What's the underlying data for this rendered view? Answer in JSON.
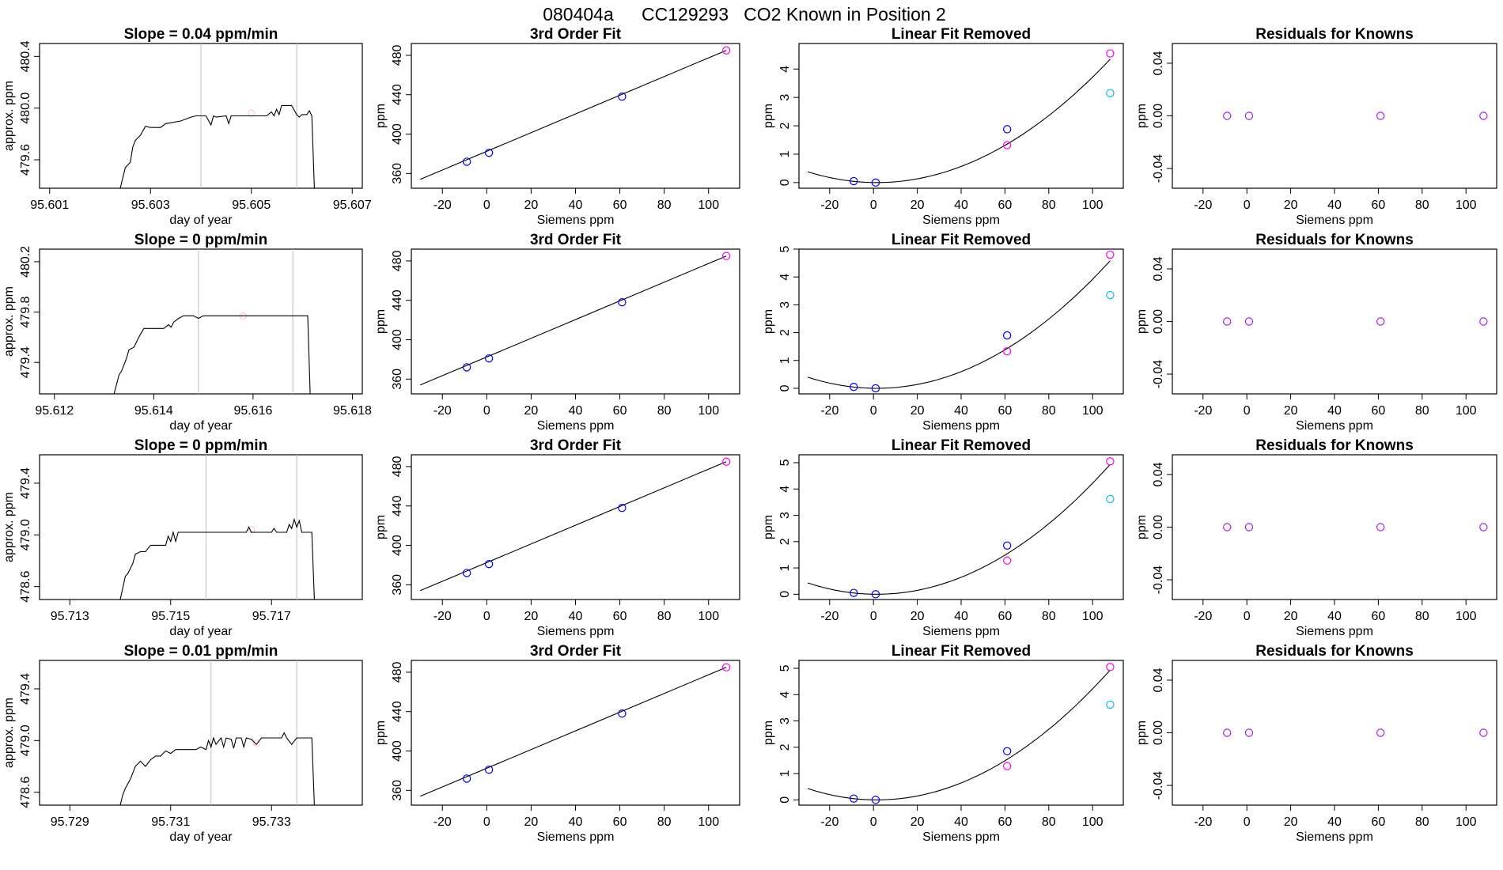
{
  "page": {
    "title_id": "080404a",
    "title_tank": "CC129293",
    "title_text": "CO2 Known in Position  2"
  },
  "colors": {
    "line": "#000000",
    "vline": "#bebebe",
    "blue": "#0000ff",
    "magenta": "#ff00ff",
    "cyan": "#00bfff",
    "purple": "#a020f0",
    "ref": "#ffc0cb"
  },
  "chart_data": [
    {
      "type": "line",
      "panel": "trace",
      "title": "Slope =  0.04  ppm/min",
      "xlabel": "day of year",
      "ylabel": "approx. ppm",
      "xlim": [
        95.6008,
        95.6072
      ],
      "ylim": [
        479.38,
        480.5
      ],
      "xticks": [
        95.601,
        95.603,
        95.605,
        95.607
      ],
      "xtick_labels": [
        "95.601",
        "95.603",
        "95.605",
        "95.607"
      ],
      "yticks": [
        479.6,
        480.0,
        480.4
      ],
      "ytick_labels": [
        "479.6",
        "480.0",
        "480.4"
      ],
      "vlines": [
        95.604,
        95.6059
      ],
      "ref_point": [
        95.605,
        479.96
      ],
      "x": [
        95.6024,
        95.6025,
        95.6026,
        95.60265,
        95.6027,
        95.6028,
        95.6029,
        95.603,
        95.6031,
        95.6032,
        95.6033,
        95.6036,
        95.6038,
        95.6039,
        95.604,
        95.6041,
        95.6042,
        95.60425,
        95.6043,
        95.6045,
        95.60455,
        95.6046,
        95.6048,
        95.605,
        95.6051,
        95.6053,
        95.6054,
        95.60545,
        95.6055,
        95.60555,
        95.6056,
        95.6057,
        95.6058,
        95.6059,
        95.60595,
        95.606,
        95.6061,
        95.60615,
        95.6062,
        95.60625
      ],
      "y": [
        479.38,
        479.54,
        479.58,
        479.7,
        479.75,
        479.79,
        479.86,
        479.85,
        479.85,
        479.85,
        479.88,
        479.9,
        479.93,
        479.94,
        479.94,
        479.94,
        479.87,
        479.94,
        479.93,
        479.94,
        479.88,
        479.94,
        479.94,
        479.94,
        479.94,
        479.94,
        479.97,
        479.94,
        479.99,
        479.95,
        480.02,
        480.02,
        480.02,
        479.95,
        479.93,
        479.95,
        479.95,
        479.98,
        479.94,
        479.38
      ]
    },
    {
      "type": "scatter",
      "panel": "fit",
      "title": "3rd Order Fit",
      "xlabel": "Siemens ppm",
      "ylabel": "ppm",
      "xlim": [
        -34,
        114
      ],
      "ylim": [
        345,
        492
      ],
      "xticks": [
        -20,
        0,
        20,
        40,
        60,
        80,
        100
      ],
      "yticks": [
        360,
        400,
        440,
        480
      ],
      "fit_line": [
        [
          -30,
          354
        ],
        [
          108,
          485
        ]
      ],
      "points": [
        [
          -9,
          372
        ],
        [
          1,
          381
        ],
        [
          61,
          438
        ],
        [
          108,
          485
        ]
      ],
      "point_colors": [
        "blue",
        "blue",
        "blue",
        "magenta"
      ]
    },
    {
      "type": "scatter",
      "panel": "linear_removed",
      "title": "Linear Fit Removed",
      "xlabel": "Siemens ppm",
      "ylabel": "ppm",
      "xlim": [
        -34,
        114
      ],
      "ylim": [
        -0.2,
        4.9
      ],
      "xticks": [
        -20,
        0,
        20,
        40,
        60,
        80,
        100
      ],
      "yticks": [
        0,
        1,
        2,
        3,
        4
      ],
      "curve": {
        "xmin": -30,
        "xmax": 108,
        "x0": 1.5,
        "a": 0.000383
      },
      "points": [
        [
          -9,
          0.05
        ],
        [
          1,
          0.0
        ],
        [
          61,
          1.88
        ],
        [
          108,
          4.55
        ],
        [
          61,
          1.32
        ],
        [
          108,
          3.15
        ]
      ],
      "point_colors": [
        "blue",
        "blue",
        "blue",
        "magenta",
        "magenta",
        "cyan"
      ]
    },
    {
      "type": "scatter",
      "panel": "residuals",
      "title": "Residuals for Knowns",
      "xlabel": "Siemens ppm",
      "ylabel": "ppm",
      "xlim": [
        -34,
        114
      ],
      "ylim": [
        -0.055,
        0.055
      ],
      "xticks": [
        -20,
        0,
        20,
        40,
        60,
        80,
        100
      ],
      "yticks": [
        -0.04,
        0.0,
        0.04
      ],
      "ytick_labels": [
        "-0.04",
        "0.00",
        "0.04"
      ],
      "points": [
        [
          -9,
          0
        ],
        [
          1,
          0
        ],
        [
          61,
          0
        ],
        [
          108,
          0
        ]
      ],
      "point_colors": [
        "purple",
        "purple",
        "purple",
        "purple"
      ]
    },
    {
      "type": "line",
      "panel": "trace",
      "title": "Slope =  0  ppm/min",
      "xlabel": "day of year",
      "ylabel": "approx. ppm",
      "xlim": [
        95.6117,
        95.6182
      ],
      "ylim": [
        479.15,
        480.3
      ],
      "xticks": [
        95.612,
        95.614,
        95.616,
        95.618
      ],
      "xtick_labels": [
        "95.612",
        "95.614",
        "95.616",
        "95.618"
      ],
      "yticks": [
        479.4,
        479.8,
        480.2
      ],
      "ytick_labels": [
        "479.4",
        "479.8",
        "480.2"
      ],
      "vlines": [
        95.6149,
        95.6168
      ],
      "ref_point": [
        95.6158,
        479.77
      ],
      "x": [
        95.6132,
        95.6133,
        95.61335,
        95.6134,
        95.61345,
        95.6135,
        95.6136,
        95.6137,
        95.6138,
        95.6139,
        95.614,
        95.6142,
        95.6143,
        95.61435,
        95.6144,
        95.6145,
        95.6146,
        95.6147,
        95.6148,
        95.6149,
        95.615,
        95.6155,
        95.616,
        95.6165,
        95.617,
        95.6171,
        95.61715
      ],
      "y": [
        479.15,
        479.3,
        479.33,
        479.38,
        479.43,
        479.5,
        479.52,
        479.6,
        479.67,
        479.67,
        479.67,
        479.67,
        479.7,
        479.68,
        479.72,
        479.75,
        479.77,
        479.77,
        479.77,
        479.75,
        479.77,
        479.77,
        479.77,
        479.77,
        479.77,
        479.77,
        479.15
      ]
    },
    {
      "type": "scatter",
      "panel": "fit",
      "title": "3rd Order Fit",
      "xlabel": "Siemens ppm",
      "ylabel": "ppm",
      "xlim": [
        -34,
        114
      ],
      "ylim": [
        345,
        492
      ],
      "xticks": [
        -20,
        0,
        20,
        40,
        60,
        80,
        100
      ],
      "yticks": [
        360,
        400,
        440,
        480
      ],
      "fit_line": [
        [
          -30,
          354
        ],
        [
          108,
          485
        ]
      ],
      "points": [
        [
          -9,
          372
        ],
        [
          1,
          381
        ],
        [
          61,
          438
        ],
        [
          108,
          485
        ]
      ],
      "point_colors": [
        "blue",
        "blue",
        "blue",
        "magenta"
      ]
    },
    {
      "type": "scatter",
      "panel": "linear_removed",
      "title": "Linear Fit Removed",
      "xlabel": "Siemens ppm",
      "ylabel": "ppm",
      "xlim": [
        -34,
        114
      ],
      "ylim": [
        -0.2,
        5.0
      ],
      "xticks": [
        -20,
        0,
        20,
        40,
        60,
        80,
        100
      ],
      "yticks": [
        0,
        1,
        2,
        3,
        4,
        5
      ],
      "curve": {
        "xmin": -30,
        "xmax": 108,
        "x0": 1.5,
        "a": 0.000404
      },
      "points": [
        [
          -9,
          0.05
        ],
        [
          1,
          0.0
        ],
        [
          61,
          1.9
        ],
        [
          108,
          4.8
        ],
        [
          61,
          1.33
        ],
        [
          108,
          3.35
        ]
      ],
      "point_colors": [
        "blue",
        "blue",
        "blue",
        "magenta",
        "magenta",
        "cyan"
      ]
    },
    {
      "type": "scatter",
      "panel": "residuals",
      "title": "Residuals for Knowns",
      "xlabel": "Siemens ppm",
      "ylabel": "ppm",
      "xlim": [
        -34,
        114
      ],
      "ylim": [
        -0.055,
        0.055
      ],
      "xticks": [
        -20,
        0,
        20,
        40,
        60,
        80,
        100
      ],
      "yticks": [
        -0.04,
        0.0,
        0.04
      ],
      "ytick_labels": [
        "-0.04",
        "0.00",
        "0.04"
      ],
      "points": [
        [
          -9,
          0
        ],
        [
          1,
          0
        ],
        [
          61,
          0
        ],
        [
          108,
          0
        ]
      ],
      "point_colors": [
        "purple",
        "purple",
        "purple",
        "purple"
      ]
    },
    {
      "type": "line",
      "panel": "trace",
      "title": "Slope =  0  ppm/min",
      "xlabel": "day of year",
      "ylabel": "approx. ppm",
      "xlim": [
        95.7124,
        95.7188
      ],
      "ylim": [
        478.5,
        479.62
      ],
      "xticks": [
        95.713,
        95.715,
        95.717
      ],
      "xtick_labels": [
        "95.713",
        "95.715",
        "95.717"
      ],
      "yticks": [
        478.6,
        479.0,
        479.4
      ],
      "ytick_labels": [
        "478.6",
        "479.0",
        "479.4"
      ],
      "vlines": [
        95.7157,
        95.7175
      ],
      "ref_point": [
        95.7166,
        479.04
      ],
      "x": [
        95.714,
        95.7141,
        95.71415,
        95.7142,
        95.71425,
        95.7143,
        95.7144,
        95.7145,
        95.7146,
        95.7147,
        95.7148,
        95.7149,
        95.71495,
        95.715,
        95.71505,
        95.7151,
        95.71515,
        95.7152,
        95.7153,
        95.716,
        95.7165,
        95.71655,
        95.7166,
        95.717,
        95.71705,
        95.7171,
        95.7173,
        95.71735,
        95.7174,
        95.71745,
        95.7175,
        95.71755,
        95.7176,
        95.7178,
        95.71785
      ],
      "y": [
        478.5,
        478.68,
        478.7,
        478.74,
        478.78,
        478.85,
        478.87,
        478.87,
        478.92,
        478.92,
        478.92,
        478.92,
        478.99,
        478.95,
        479.02,
        478.95,
        479.02,
        479.02,
        479.02,
        479.02,
        479.02,
        479.06,
        479.02,
        479.02,
        479.05,
        479.02,
        479.02,
        479.08,
        479.05,
        479.12,
        479.06,
        479.11,
        479.02,
        479.02,
        478.5
      ]
    },
    {
      "type": "scatter",
      "panel": "fit",
      "title": "3rd Order Fit",
      "xlabel": "Siemens ppm",
      "ylabel": "ppm",
      "xlim": [
        -34,
        114
      ],
      "ylim": [
        345,
        492
      ],
      "xticks": [
        -20,
        0,
        20,
        40,
        60,
        80,
        100
      ],
      "yticks": [
        360,
        400,
        440,
        480
      ],
      "fit_line": [
        [
          -30,
          354
        ],
        [
          108,
          485
        ]
      ],
      "points": [
        [
          -9,
          372
        ],
        [
          1,
          381
        ],
        [
          61,
          438
        ],
        [
          108,
          485
        ]
      ],
      "point_colors": [
        "blue",
        "blue",
        "blue",
        "magenta"
      ]
    },
    {
      "type": "scatter",
      "panel": "linear_removed",
      "title": "Linear Fit Removed",
      "xlabel": "Siemens ppm",
      "ylabel": "ppm",
      "xlim": [
        -34,
        114
      ],
      "ylim": [
        -0.2,
        5.3
      ],
      "xticks": [
        -20,
        0,
        20,
        40,
        60,
        80,
        100
      ],
      "yticks": [
        0,
        1,
        2,
        3,
        4,
        5
      ],
      "curve": {
        "xmin": -30,
        "xmax": 108,
        "x0": 1.5,
        "a": 0.000435
      },
      "points": [
        [
          -9,
          0.05
        ],
        [
          1,
          0.0
        ],
        [
          61,
          1.85
        ],
        [
          108,
          5.05
        ],
        [
          61,
          1.28
        ],
        [
          108,
          3.62
        ]
      ],
      "point_colors": [
        "blue",
        "blue",
        "blue",
        "magenta",
        "magenta",
        "cyan"
      ]
    },
    {
      "type": "scatter",
      "panel": "residuals",
      "title": "Residuals for Knowns",
      "xlabel": "Siemens ppm",
      "ylabel": "ppm",
      "xlim": [
        -34,
        114
      ],
      "ylim": [
        -0.055,
        0.055
      ],
      "xticks": [
        -20,
        0,
        20,
        40,
        60,
        80,
        100
      ],
      "yticks": [
        -0.04,
        0.0,
        0.04
      ],
      "ytick_labels": [
        "-0.04",
        "0.00",
        "0.04"
      ],
      "points": [
        [
          -9,
          0
        ],
        [
          1,
          0
        ],
        [
          61,
          0
        ],
        [
          108,
          0
        ]
      ],
      "point_colors": [
        "purple",
        "purple",
        "purple",
        "purple"
      ]
    },
    {
      "type": "line",
      "panel": "trace",
      "title": "Slope =  0.01  ppm/min",
      "xlabel": "day of year",
      "ylabel": "approx. ppm",
      "xlim": [
        95.7284,
        95.7348
      ],
      "ylim": [
        478.5,
        479.62
      ],
      "xticks": [
        95.729,
        95.731,
        95.733
      ],
      "xtick_labels": [
        "95.729",
        "95.731",
        "95.733"
      ],
      "yticks": [
        478.6,
        479.0,
        479.4
      ],
      "ytick_labels": [
        "478.6",
        "479.0",
        "479.4"
      ],
      "vlines": [
        95.7318,
        95.7335
      ],
      "ref_point": [
        95.7327,
        478.98
      ],
      "x": [
        95.73,
        95.73005,
        95.7301,
        95.7302,
        95.73025,
        95.7303,
        95.7304,
        95.7305,
        95.7306,
        95.7307,
        95.7308,
        95.7309,
        95.731,
        95.7311,
        95.7312,
        95.7313,
        95.7314,
        95.7315,
        95.7316,
        95.7317,
        95.73175,
        95.7318,
        95.73185,
        95.7319,
        95.732,
        95.73205,
        95.7321,
        95.7322,
        95.73225,
        95.7323,
        95.7324,
        95.73245,
        95.7325,
        95.7326,
        95.7327,
        95.7328,
        95.7329,
        95.733,
        95.7332,
        95.73325,
        95.7333,
        95.7334,
        95.7335,
        95.7338,
        95.73385
      ],
      "y": [
        478.5,
        478.58,
        478.63,
        478.7,
        478.75,
        478.8,
        478.84,
        478.8,
        478.85,
        478.88,
        478.88,
        478.92,
        478.9,
        478.93,
        478.93,
        478.93,
        478.93,
        478.93,
        478.95,
        478.93,
        479.0,
        478.95,
        479.02,
        478.97,
        479.02,
        478.95,
        479.02,
        479.01,
        478.94,
        479.02,
        479.02,
        478.95,
        479.02,
        479.01,
        478.97,
        479.02,
        479.02,
        479.02,
        479.02,
        479.06,
        479.02,
        478.97,
        479.02,
        479.02,
        478.5
      ]
    },
    {
      "type": "scatter",
      "panel": "fit",
      "title": "3rd Order Fit",
      "xlabel": "Siemens ppm",
      "ylabel": "ppm",
      "xlim": [
        -34,
        114
      ],
      "ylim": [
        345,
        492
      ],
      "xticks": [
        -20,
        0,
        20,
        40,
        60,
        80,
        100
      ],
      "yticks": [
        360,
        400,
        440,
        480
      ],
      "fit_line": [
        [
          -30,
          354
        ],
        [
          108,
          485
        ]
      ],
      "points": [
        [
          -9,
          372
        ],
        [
          1,
          381
        ],
        [
          61,
          438
        ],
        [
          108,
          485
        ]
      ],
      "point_colors": [
        "blue",
        "blue",
        "blue",
        "magenta"
      ]
    },
    {
      "type": "scatter",
      "panel": "linear_removed",
      "title": "Linear Fit Removed",
      "xlabel": "Siemens ppm",
      "ylabel": "ppm",
      "xlim": [
        -34,
        114
      ],
      "ylim": [
        -0.2,
        5.3
      ],
      "xticks": [
        -20,
        0,
        20,
        40,
        60,
        80,
        100
      ],
      "yticks": [
        0,
        1,
        2,
        3,
        4,
        5
      ],
      "curve": {
        "xmin": -30,
        "xmax": 108,
        "x0": 1.5,
        "a": 0.000435
      },
      "points": [
        [
          -9,
          0.05
        ],
        [
          1,
          0.0
        ],
        [
          61,
          1.85
        ],
        [
          108,
          5.05
        ],
        [
          61,
          1.28
        ],
        [
          108,
          3.62
        ]
      ],
      "point_colors": [
        "blue",
        "blue",
        "blue",
        "magenta",
        "magenta",
        "cyan"
      ]
    },
    {
      "type": "scatter",
      "panel": "residuals",
      "title": "Residuals for Knowns",
      "xlabel": "Siemens ppm",
      "ylabel": "ppm",
      "xlim": [
        -34,
        114
      ],
      "ylim": [
        -0.055,
        0.055
      ],
      "xticks": [
        -20,
        0,
        20,
        40,
        60,
        80,
        100
      ],
      "yticks": [
        -0.04,
        0.0,
        0.04
      ],
      "ytick_labels": [
        "-0.04",
        "0.00",
        "0.04"
      ],
      "points": [
        [
          -9,
          0
        ],
        [
          1,
          0
        ],
        [
          61,
          0
        ],
        [
          108,
          0
        ]
      ],
      "point_colors": [
        "purple",
        "purple",
        "purple",
        "purple"
      ]
    }
  ]
}
